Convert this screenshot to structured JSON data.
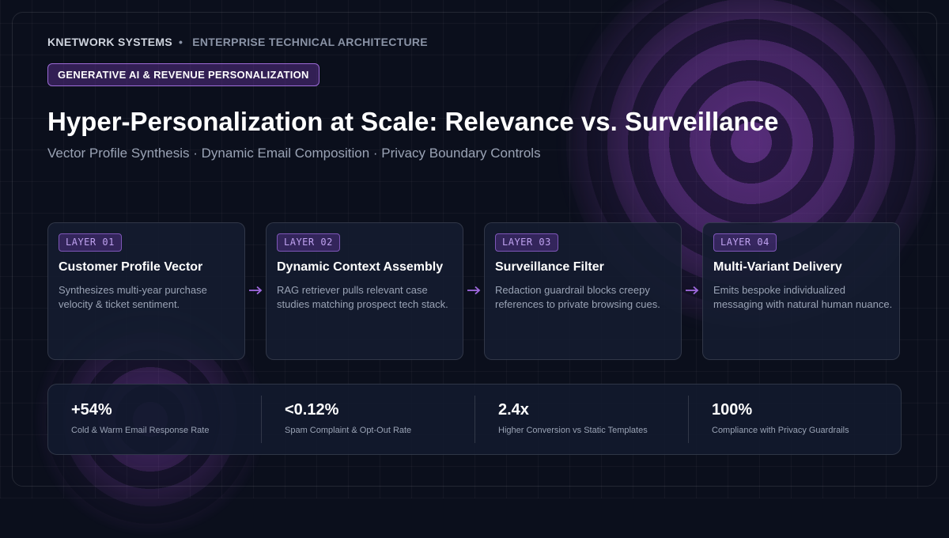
{
  "header": {
    "brand": "KNETWORK SYSTEMS",
    "separator": "•",
    "section": "ENTERPRISE TECHNICAL ARCHITECTURE"
  },
  "pill": "GENERATIVE AI & REVENUE PERSONALIZATION",
  "title": "Hyper-Personalization at Scale: Relevance vs. Surveillance",
  "subtitle": "Vector Profile Synthesis · Dynamic Email Composition · Privacy Boundary Controls",
  "layers": [
    {
      "tag": "LAYER 01",
      "title": "Customer Profile Vector",
      "desc": "Synthesizes multi-year purchase velocity & ticket sentiment."
    },
    {
      "tag": "LAYER 02",
      "title": "Dynamic Context Assembly",
      "desc": "RAG retriever pulls relevant case studies matching prospect tech stack."
    },
    {
      "tag": "LAYER 03",
      "title": "Surveillance Filter",
      "desc": "Redaction guardrail blocks creepy references to private browsing cues."
    },
    {
      "tag": "LAYER 04",
      "title": "Multi-Variant Delivery",
      "desc": "Emits bespoke individualized messaging with natural human nuance."
    }
  ],
  "stats": [
    {
      "value": "+54%",
      "label": "Cold & Warm Email Response Rate"
    },
    {
      "value": "<0.12%",
      "label": "Spam Complaint & Opt-Out Rate"
    },
    {
      "value": "2.4x",
      "label": "Higher Conversion vs Static Templates"
    },
    {
      "value": "100%",
      "label": "Compliance with Privacy Guardrails"
    }
  ],
  "colors": {
    "background": "#0b0f1c",
    "accent": "#9b6ad6",
    "tag_text": "#bfa2f0",
    "muted_text": "#9aa3b5"
  },
  "icons": {
    "flow_arrow": "arrow-right-icon"
  }
}
